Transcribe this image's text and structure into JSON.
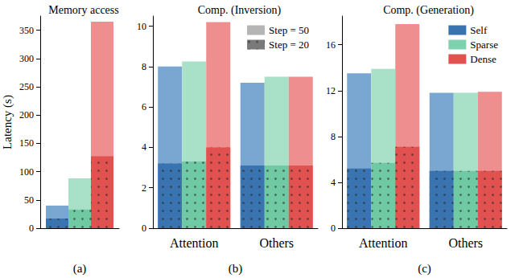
{
  "chart_data": [
    {
      "type": "bar",
      "title": "Memory access",
      "y_label": "Latency (s)",
      "x_label": "(a)",
      "categories": [
        null
      ],
      "ylim": [
        0,
        375
      ],
      "yticks": [
        0,
        50,
        100,
        150,
        200,
        250,
        300,
        350
      ],
      "grid": false,
      "series": [
        {
          "name": "Self",
          "step": "Step = 50",
          "color": "#7aa6d2",
          "marker": "solid",
          "values": [
            40
          ]
        },
        {
          "name": "Sparse",
          "step": "Step = 50",
          "color": "#a8e0c8",
          "marker": "solid",
          "values": [
            88
          ]
        },
        {
          "name": "Dense",
          "step": "Step = 50",
          "color": "#ef8e8e",
          "marker": "solid",
          "values": [
            365
          ]
        },
        {
          "name": "Self",
          "step": "Step = 20",
          "color": "#3a74b0",
          "marker": "dots",
          "values": [
            17
          ]
        },
        {
          "name": "Sparse",
          "step": "Step = 20",
          "color": "#6fcaa3",
          "marker": "dots",
          "values": [
            33
          ]
        },
        {
          "name": "Dense",
          "step": "Step = 20",
          "color": "#e0514f",
          "marker": "dots",
          "values": [
            127
          ]
        }
      ]
    },
    {
      "type": "bar",
      "title": "Comp. (Inversion)",
      "x_label": "(b)",
      "categories": [
        "Attention",
        "Others"
      ],
      "ylim": [
        0,
        10.5
      ],
      "yticks": [
        0,
        2,
        4,
        6,
        8,
        10
      ],
      "grid": false,
      "legend": "upper right",
      "legend_items": [
        {
          "name": "Step = 50",
          "color": "#b5b5b5",
          "marker": "solid"
        },
        {
          "name": "Step = 20",
          "color": "#7a7a7a",
          "marker": "dots"
        }
      ],
      "series": [
        {
          "name": "Self",
          "step": "Step = 50",
          "color": "#7aa6d2",
          "marker": "solid",
          "values": [
            8.0,
            7.2
          ]
        },
        {
          "name": "Sparse",
          "step": "Step = 50",
          "color": "#a8e0c8",
          "marker": "solid",
          "values": [
            8.25,
            7.5
          ]
        },
        {
          "name": "Dense",
          "step": "Step = 50",
          "color": "#ef8e8e",
          "marker": "solid",
          "values": [
            10.2,
            7.5
          ]
        },
        {
          "name": "Self",
          "step": "Step = 20",
          "color": "#3a74b0",
          "marker": "dots",
          "values": [
            3.2,
            3.1
          ]
        },
        {
          "name": "Sparse",
          "step": "Step = 20",
          "color": "#6fcaa3",
          "marker": "dots",
          "values": [
            3.3,
            3.1
          ]
        },
        {
          "name": "Dense",
          "step": "Step = 20",
          "color": "#e0514f",
          "marker": "dots",
          "values": [
            4.0,
            3.1
          ]
        }
      ]
    },
    {
      "type": "bar",
      "title": "Comp. (Generation)",
      "x_label": "(c)",
      "categories": [
        "Attention",
        "Others"
      ],
      "ylim": [
        0,
        18.5
      ],
      "yticks": [
        0,
        4,
        8,
        12,
        16
      ],
      "grid": false,
      "legend": "upper right",
      "legend_items": [
        {
          "name": "Self",
          "color": "#3a74b0",
          "marker": "solid"
        },
        {
          "name": "Sparse",
          "color": "#7dd3ad",
          "marker": "solid"
        },
        {
          "name": "Dense",
          "color": "#e0514f",
          "marker": "solid"
        }
      ],
      "series": [
        {
          "name": "Self",
          "step": "Step = 50",
          "color": "#7aa6d2",
          "marker": "solid",
          "values": [
            13.5,
            11.8
          ]
        },
        {
          "name": "Sparse",
          "step": "Step = 50",
          "color": "#a8e0c8",
          "marker": "solid",
          "values": [
            13.9,
            11.8
          ]
        },
        {
          "name": "Dense",
          "step": "Step = 50",
          "color": "#ef8e8e",
          "marker": "solid",
          "values": [
            17.8,
            11.9
          ]
        },
        {
          "name": "Self",
          "step": "Step = 20",
          "color": "#3a74b0",
          "marker": "dots",
          "values": [
            5.2,
            5.0
          ]
        },
        {
          "name": "Sparse",
          "step": "Step = 20",
          "color": "#6fcaa3",
          "marker": "dots",
          "values": [
            5.7,
            5.0
          ]
        },
        {
          "name": "Dense",
          "step": "Step = 20",
          "color": "#e0514f",
          "marker": "dots",
          "values": [
            7.1,
            5.0
          ]
        }
      ]
    }
  ]
}
